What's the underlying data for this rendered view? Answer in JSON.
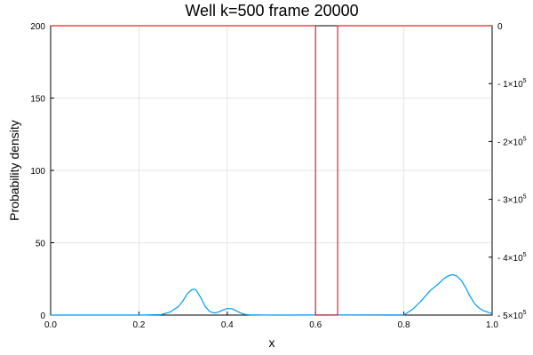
{
  "chart_data": {
    "type": "line",
    "title": "Well k=500 frame 20000",
    "xlabel": "x",
    "ylabel": "Probability density",
    "xlim": [
      0,
      1
    ],
    "ylim": [
      0,
      200
    ],
    "y2lim": [
      -500000,
      0
    ],
    "grid": true,
    "legend": "none",
    "x_ticks": [
      {
        "value": 0.0,
        "label": "0.0"
      },
      {
        "value": 0.2,
        "label": "0.2"
      },
      {
        "value": 0.4,
        "label": "0.4"
      },
      {
        "value": 0.6,
        "label": "0.6"
      },
      {
        "value": 0.8,
        "label": "0.8"
      },
      {
        "value": 1.0,
        "label": "1.0"
      }
    ],
    "y_ticks": [
      {
        "value": 0,
        "label": "0"
      },
      {
        "value": 50,
        "label": "50"
      },
      {
        "value": 100,
        "label": "100"
      },
      {
        "value": 150,
        "label": "150"
      },
      {
        "value": 200,
        "label": "200"
      }
    ],
    "y2_ticks": [
      {
        "value": 0,
        "label": "0",
        "mantissa": "",
        "exp": ""
      },
      {
        "value": -100000,
        "label": "- 1×10",
        "exp": "5"
      },
      {
        "value": -200000,
        "label": "- 2×10",
        "exp": "5"
      },
      {
        "value": -300000,
        "label": "- 3×10",
        "exp": "5"
      },
      {
        "value": -400000,
        "label": "- 4×10",
        "exp": "5"
      },
      {
        "value": -500000,
        "label": "- 5×10",
        "exp": "5"
      }
    ],
    "series": [
      {
        "axis": "left",
        "color": "#009af9",
        "x": [
          0.0,
          0.2,
          0.25,
          0.27,
          0.29,
          0.3,
          0.31,
          0.32,
          0.325,
          0.33,
          0.34,
          0.35,
          0.36,
          0.37,
          0.38,
          0.39,
          0.4,
          0.41,
          0.42,
          0.43,
          0.44,
          0.45,
          0.5,
          0.8,
          0.805,
          0.82,
          0.84,
          0.86,
          0.88,
          0.89,
          0.9,
          0.91,
          0.92,
          0.93,
          0.94,
          0.95,
          0.96,
          0.97,
          0.98,
          0.99,
          1.0
        ],
        "y": [
          0,
          0,
          0.3,
          2,
          6,
          10,
          15,
          17.5,
          18,
          17,
          12,
          6,
          2.5,
          1.5,
          2,
          3.5,
          4.5,
          4.5,
          3,
          1.5,
          0.5,
          0.2,
          0,
          0.2,
          1,
          4,
          10,
          17,
          22,
          25,
          27,
          28,
          27,
          24,
          19,
          13,
          8,
          5,
          3,
          2,
          1
        ]
      },
      {
        "axis": "right",
        "color": "#e9212c",
        "x": [
          0.0,
          0.6,
          0.6,
          0.65,
          0.65,
          1.0
        ],
        "y": [
          0,
          0,
          -500000,
          -500000,
          0,
          0
        ]
      }
    ]
  }
}
